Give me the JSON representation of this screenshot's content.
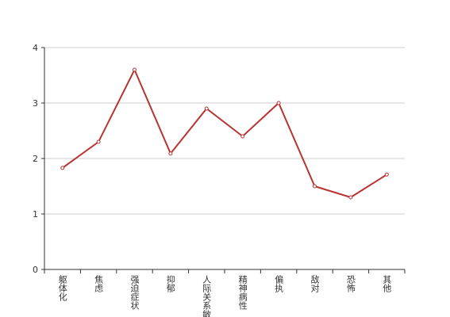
{
  "chart_data": {
    "type": "line",
    "categories": [
      "躯体化",
      "焦虑",
      "强迫症状",
      "抑郁",
      "人际关系敏感",
      "精神病性",
      "偏执",
      "敌对",
      "恐怖",
      "其他"
    ],
    "values": [
      1.83,
      2.3,
      3.6,
      2.09,
      2.9,
      2.4,
      3.0,
      1.5,
      1.3,
      1.71
    ],
    "color": "#b83332",
    "ylim": [
      0,
      4
    ],
    "yticks": [
      0,
      1,
      2,
      3,
      4
    ],
    "grid": true
  }
}
